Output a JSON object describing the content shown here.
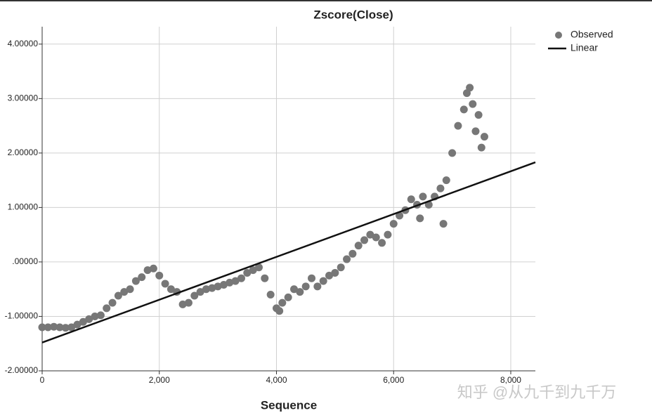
{
  "chart_data": {
    "type": "scatter",
    "title": "Zscore(Close)",
    "x_label": "Sequence",
    "xlim": [
      0,
      8420
    ],
    "ylim": [
      -2,
      4.32
    ],
    "xticks": [
      0,
      {
        "value": 2000,
        "label": "2,000"
      },
      {
        "value": 4000,
        "label": "4,000"
      },
      {
        "value": 6000,
        "label": "6,000"
      },
      {
        "value": 8000,
        "label": "8,000"
      }
    ],
    "yticks": [
      {
        "value": -2,
        "label": "-2.00000"
      },
      {
        "value": -1,
        "label": "-1.00000"
      },
      {
        "value": 0,
        "label": ".00000"
      },
      {
        "value": 1,
        "label": "1.00000"
      },
      {
        "value": 2,
        "label": "2.00000"
      },
      {
        "value": 3,
        "label": "3.00000"
      },
      {
        "value": 4,
        "label": "4.00000"
      }
    ],
    "grid": true,
    "legend": "right",
    "series": [
      {
        "name": "Observed",
        "type": "scatter",
        "color": "#777777",
        "x": [
          0,
          100,
          200,
          300,
          400,
          500,
          600,
          700,
          800,
          900,
          1000,
          1100,
          1200,
          1300,
          1400,
          1500,
          1600,
          1700,
          1800,
          1900,
          2000,
          2100,
          2200,
          2300,
          2400,
          2500,
          2600,
          2700,
          2800,
          2900,
          3000,
          3100,
          3200,
          3300,
          3400,
          3500,
          3600,
          3700,
          3800,
          3900,
          4000,
          4050,
          4100,
          4200,
          4300,
          4400,
          4500,
          4600,
          4700,
          4800,
          4900,
          5000,
          5100,
          5200,
          5300,
          5400,
          5500,
          5600,
          5700,
          5800,
          5900,
          6000,
          6100,
          6200,
          6300,
          6400,
          6450,
          6500,
          6600,
          6700,
          6800,
          6850,
          6900,
          7000,
          7100,
          7200,
          7250,
          7300,
          7350,
          7400,
          7450,
          7500,
          7550
        ],
        "values": [
          -1.2,
          -1.2,
          -1.19,
          -1.2,
          -1.21,
          -1.2,
          -1.15,
          -1.1,
          -1.05,
          -1.0,
          -0.98,
          -0.85,
          -0.75,
          -0.62,
          -0.55,
          -0.5,
          -0.35,
          -0.28,
          -0.15,
          -0.12,
          -0.25,
          -0.4,
          -0.5,
          -0.55,
          -0.78,
          -0.75,
          -0.62,
          -0.55,
          -0.5,
          -0.48,
          -0.45,
          -0.42,
          -0.38,
          -0.35,
          -0.3,
          -0.2,
          -0.15,
          -0.1,
          -0.3,
          -0.6,
          -0.85,
          -0.9,
          -0.75,
          -0.65,
          -0.5,
          -0.55,
          -0.45,
          -0.3,
          -0.45,
          -0.35,
          -0.25,
          -0.2,
          -0.1,
          0.05,
          0.15,
          0.3,
          0.4,
          0.5,
          0.45,
          0.35,
          0.5,
          0.7,
          0.85,
          0.95,
          1.15,
          1.05,
          0.8,
          1.2,
          1.05,
          1.2,
          1.35,
          0.7,
          1.5,
          2.0,
          2.5,
          2.8,
          3.1,
          3.2,
          2.9,
          2.4,
          2.7,
          2.1,
          2.3
        ]
      },
      {
        "name": "Linear",
        "type": "line",
        "color": "#111111",
        "x": [
          0,
          8420
        ],
        "values": [
          -1.48,
          1.83
        ]
      }
    ],
    "watermark": "知乎 @从九千到九千万"
  }
}
